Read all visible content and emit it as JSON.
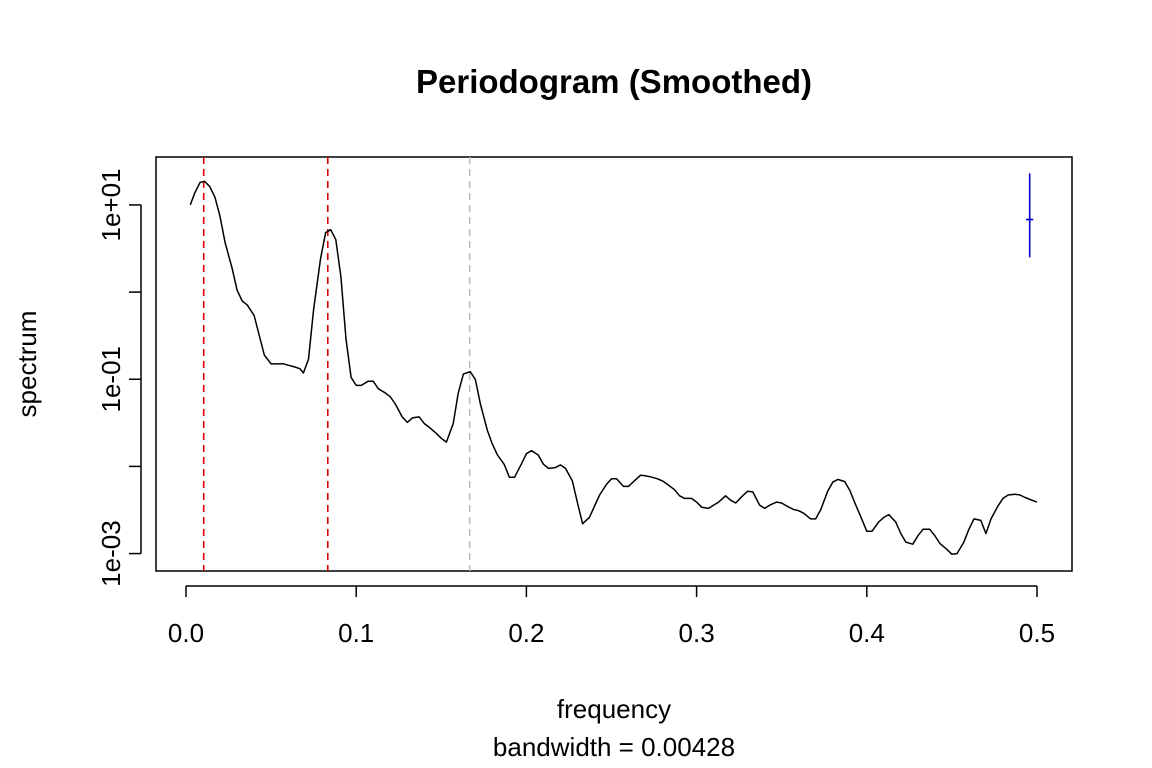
{
  "chart_data": {
    "type": "line",
    "title": "Periodogram (Smoothed)",
    "xlabel": "frequency",
    "sublabel": "bandwidth = 0.00428",
    "ylabel": "spectrum",
    "y_scale": "log",
    "xlim": [
      0,
      0.5
    ],
    "ylim_log10": [
      -3.2,
      1.55
    ],
    "x_ticks": [
      0.0,
      0.1,
      0.2,
      0.3,
      0.4,
      0.5
    ],
    "x_tick_labels": [
      "0.0",
      "0.1",
      "0.2",
      "0.3",
      "0.4",
      "0.5"
    ],
    "y_ticks_log10": [
      -3,
      -2,
      -1,
      0,
      1
    ],
    "y_tick_labels": [
      "1e-03",
      "",
      "1e-01",
      "",
      "1e+01"
    ],
    "series": [
      {
        "color": "#000000",
        "points": [
          [
            0.0025,
            10
          ],
          [
            0.005,
            13.5
          ],
          [
            0.0083,
            18.2
          ],
          [
            0.011,
            18.6
          ],
          [
            0.014,
            16.2
          ],
          [
            0.017,
            12.3
          ],
          [
            0.02,
            7.4
          ],
          [
            0.023,
            3.7
          ],
          [
            0.027,
            1.9
          ],
          [
            0.03,
            1.05
          ],
          [
            0.033,
            0.79
          ],
          [
            0.036,
            0.71
          ],
          [
            0.04,
            0.54
          ],
          [
            0.043,
            0.32
          ],
          [
            0.046,
            0.19
          ],
          [
            0.05,
            0.15
          ],
          [
            0.053,
            0.15
          ],
          [
            0.057,
            0.151
          ],
          [
            0.06,
            0.145
          ],
          [
            0.063,
            0.14
          ],
          [
            0.067,
            0.132
          ],
          [
            0.069,
            0.118
          ],
          [
            0.072,
            0.17
          ],
          [
            0.075,
            0.63
          ],
          [
            0.079,
            2.4
          ],
          [
            0.082,
            4.8
          ],
          [
            0.085,
            5.2
          ],
          [
            0.088,
            4.0
          ],
          [
            0.091,
            1.5
          ],
          [
            0.094,
            0.29
          ],
          [
            0.097,
            0.105
          ],
          [
            0.1,
            0.085
          ],
          [
            0.103,
            0.085
          ],
          [
            0.107,
            0.095
          ],
          [
            0.11,
            0.095
          ],
          [
            0.113,
            0.078
          ],
          [
            0.117,
            0.07
          ],
          [
            0.12,
            0.063
          ],
          [
            0.123,
            0.052
          ],
          [
            0.127,
            0.037
          ],
          [
            0.13,
            0.032
          ],
          [
            0.133,
            0.036
          ],
          [
            0.137,
            0.037
          ],
          [
            0.14,
            0.031
          ],
          [
            0.143,
            0.028
          ],
          [
            0.147,
            0.024
          ],
          [
            0.15,
            0.021
          ],
          [
            0.153,
            0.019
          ],
          [
            0.157,
            0.031
          ],
          [
            0.16,
            0.07
          ],
          [
            0.163,
            0.115
          ],
          [
            0.167,
            0.122
          ],
          [
            0.17,
            0.1
          ],
          [
            0.173,
            0.052
          ],
          [
            0.177,
            0.026
          ],
          [
            0.18,
            0.018
          ],
          [
            0.183,
            0.0135
          ],
          [
            0.187,
            0.0105
          ],
          [
            0.19,
            0.0075
          ],
          [
            0.193,
            0.0075
          ],
          [
            0.197,
            0.0106
          ],
          [
            0.2,
            0.014
          ],
          [
            0.203,
            0.0152
          ],
          [
            0.207,
            0.0135
          ],
          [
            0.21,
            0.0106
          ],
          [
            0.213,
            0.0095
          ],
          [
            0.217,
            0.0097
          ],
          [
            0.22,
            0.0104
          ],
          [
            0.223,
            0.0095
          ],
          [
            0.227,
            0.0068
          ],
          [
            0.23,
            0.0038
          ],
          [
            0.233,
            0.0022
          ],
          [
            0.237,
            0.0026
          ],
          [
            0.24,
            0.0035
          ],
          [
            0.243,
            0.0047
          ],
          [
            0.247,
            0.0062
          ],
          [
            0.25,
            0.0072
          ],
          [
            0.253,
            0.0072
          ],
          [
            0.257,
            0.0059
          ],
          [
            0.26,
            0.0059
          ],
          [
            0.263,
            0.0067
          ],
          [
            0.267,
            0.0079
          ],
          [
            0.27,
            0.0078
          ],
          [
            0.273,
            0.0076
          ],
          [
            0.277,
            0.0072
          ],
          [
            0.28,
            0.0068
          ],
          [
            0.283,
            0.0062
          ],
          [
            0.287,
            0.0054
          ],
          [
            0.29,
            0.0046
          ],
          [
            0.293,
            0.0043
          ],
          [
            0.297,
            0.0043
          ],
          [
            0.3,
            0.0039
          ],
          [
            0.303,
            0.0034
          ],
          [
            0.307,
            0.0033
          ],
          [
            0.31,
            0.0036
          ],
          [
            0.313,
            0.0039
          ],
          [
            0.317,
            0.0046
          ],
          [
            0.32,
            0.0041
          ],
          [
            0.323,
            0.0038
          ],
          [
            0.327,
            0.0046
          ],
          [
            0.33,
            0.0052
          ],
          [
            0.333,
            0.0051
          ],
          [
            0.337,
            0.0036
          ],
          [
            0.34,
            0.0033
          ],
          [
            0.343,
            0.0036
          ],
          [
            0.347,
            0.0039
          ],
          [
            0.35,
            0.0038
          ],
          [
            0.353,
            0.0035
          ],
          [
            0.357,
            0.0032
          ],
          [
            0.36,
            0.0031
          ],
          [
            0.363,
            0.0029
          ],
          [
            0.367,
            0.0025
          ],
          [
            0.37,
            0.0025
          ],
          [
            0.373,
            0.0032
          ],
          [
            0.377,
            0.0052
          ],
          [
            0.38,
            0.0066
          ],
          [
            0.383,
            0.0071
          ],
          [
            0.387,
            0.0067
          ],
          [
            0.39,
            0.0053
          ],
          [
            0.393,
            0.0038
          ],
          [
            0.397,
            0.0025
          ],
          [
            0.4,
            0.0018
          ],
          [
            0.403,
            0.0018
          ],
          [
            0.407,
            0.0023
          ],
          [
            0.41,
            0.0026
          ],
          [
            0.413,
            0.0028
          ],
          [
            0.417,
            0.0023
          ],
          [
            0.42,
            0.0017
          ],
          [
            0.423,
            0.00135
          ],
          [
            0.427,
            0.00128
          ],
          [
            0.43,
            0.0016
          ],
          [
            0.433,
            0.0019
          ],
          [
            0.437,
            0.0019
          ],
          [
            0.44,
            0.0016
          ],
          [
            0.443,
            0.0013
          ],
          [
            0.447,
            0.00112
          ],
          [
            0.45,
            0.00098
          ],
          [
            0.453,
            0.001
          ],
          [
            0.457,
            0.00135
          ],
          [
            0.46,
            0.0019
          ],
          [
            0.463,
            0.0025
          ],
          [
            0.467,
            0.0024
          ],
          [
            0.47,
            0.0017
          ],
          [
            0.473,
            0.0025
          ],
          [
            0.477,
            0.0035
          ],
          [
            0.48,
            0.0043
          ],
          [
            0.483,
            0.0047
          ],
          [
            0.487,
            0.0048
          ],
          [
            0.49,
            0.0047
          ],
          [
            0.493,
            0.0044
          ],
          [
            0.497,
            0.0041
          ],
          [
            0.5,
            0.0039
          ]
        ]
      }
    ],
    "vertical_lines": [
      {
        "x": 0.0104,
        "color": "#dd0000",
        "style": "dashed"
      },
      {
        "x": 0.0833,
        "color": "#dd0000",
        "style": "dashed"
      },
      {
        "x": 0.1667,
        "color": "#bebebe",
        "style": "dashed"
      }
    ],
    "bandwidth_marker": {
      "x": 0.4957,
      "y": 6.8,
      "y_low": 2.5,
      "y_high": 23,
      "half_width": 0.00214,
      "color": "#0000cc"
    }
  }
}
